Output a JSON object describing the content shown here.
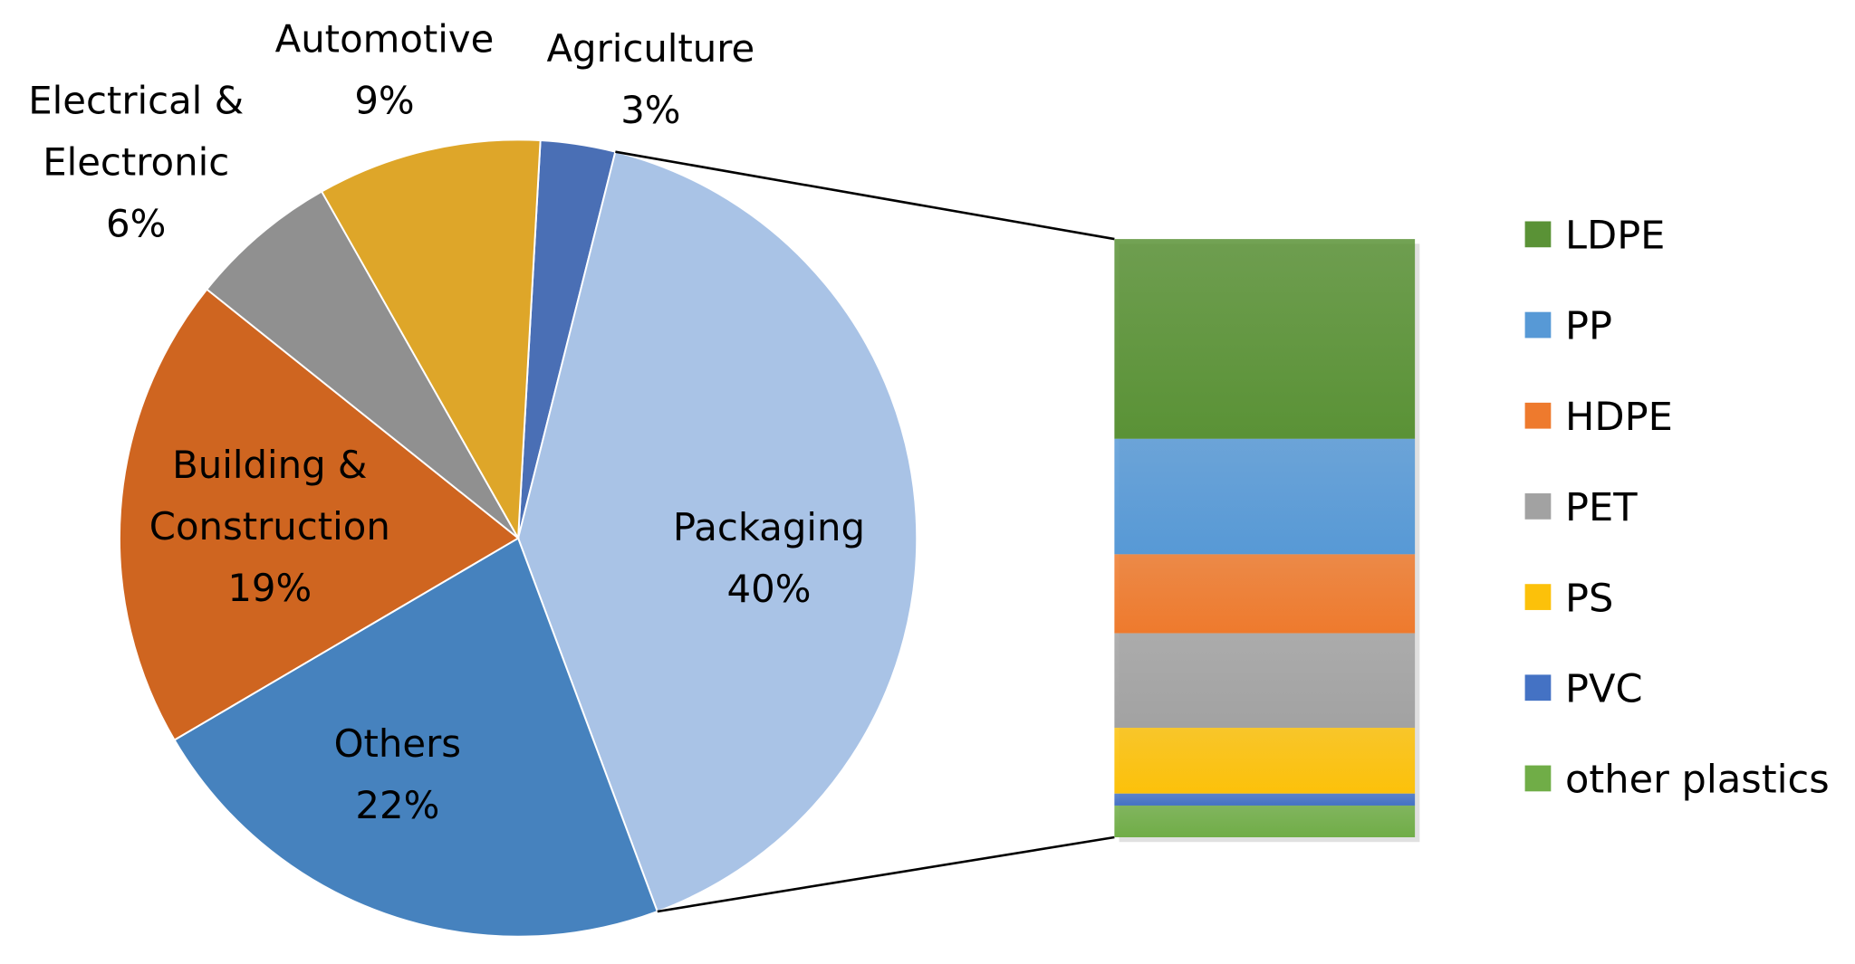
{
  "chart_data": [
    {
      "type": "pie",
      "slices": [
        {
          "label": "Agriculture",
          "value": 3,
          "value_label": "3%",
          "color": "#4a6fb5"
        },
        {
          "label": "Packaging",
          "value": 40,
          "value_label": "40%",
          "color": "#a9c3e6"
        },
        {
          "label": "Others",
          "value": 22,
          "value_label": "22%",
          "color": "#4682be"
        },
        {
          "label": "Building & Construction",
          "label_lines": [
            "Building &",
            "Construction"
          ],
          "value": 19,
          "value_label": "19%",
          "color": "#cf6520"
        },
        {
          "label": "Electrical & Electronic",
          "label_lines": [
            "Electrical &",
            "Electronic"
          ],
          "value": 6,
          "value_label": "6%",
          "color": "#909090"
        },
        {
          "label": "Automotive",
          "value": 9,
          "value_label": "9%",
          "color": "#dea629"
        }
      ],
      "exploded_slice": "Packaging"
    },
    {
      "type": "bar",
      "stacked": true,
      "orientation": "vertical",
      "breakdown_of": "Packaging",
      "series": [
        {
          "name": "LDPE",
          "value": 33.4,
          "color": "#5a9236"
        },
        {
          "name": "PP",
          "value": 19.3,
          "color": "#5799d6"
        },
        {
          "name": "HDPE",
          "value": 13.2,
          "color": "#ee7a2d"
        },
        {
          "name": "PET",
          "value": 15.8,
          "color": "#a2a2a2"
        },
        {
          "name": "PS",
          "value": 11.0,
          "color": "#fcc10a"
        },
        {
          "name": "PVC",
          "value": 2.0,
          "color": "#4472c4"
        },
        {
          "name": "other plastics",
          "value": 5.3,
          "color": "#70ad47"
        }
      ],
      "legend": "right"
    }
  ]
}
